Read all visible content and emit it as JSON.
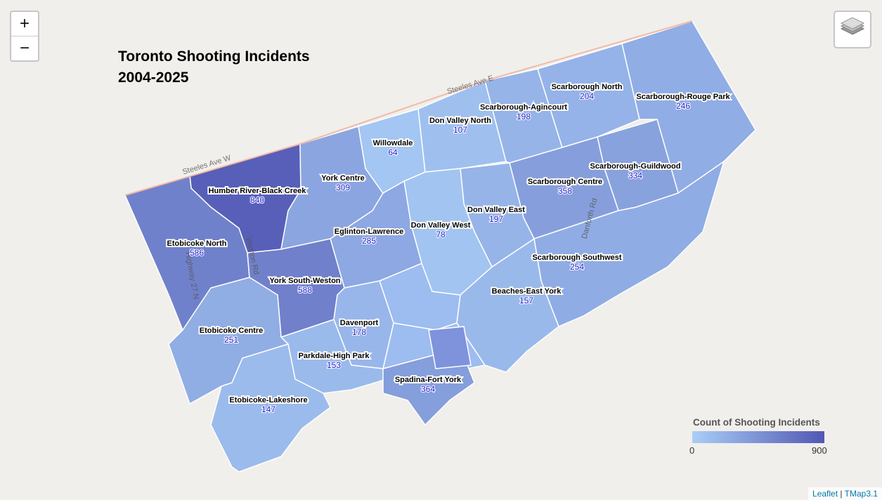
{
  "title": "Toronto Shooting Incidents",
  "subtitle": "2004-2025",
  "zoom_controls": [
    "+",
    "−"
  ],
  "roads": [
    "Steeles Ave W",
    "Steeles Ave E",
    "Weston Rd",
    "Highway 27 N",
    "Danforth Rd"
  ],
  "districts": [
    {
      "name": "Humber River-Black Creek",
      "count": 840
    },
    {
      "name": "Etobicoke North",
      "count": 586
    },
    {
      "name": "York Centre",
      "count": 309
    },
    {
      "name": "Willowdale",
      "count": 64
    },
    {
      "name": "Don Valley North",
      "count": 107
    },
    {
      "name": "Scarborough-Agincourt",
      "count": 198
    },
    {
      "name": "Scarborough North",
      "count": 204
    },
    {
      "name": "Scarborough-Rouge Park",
      "count": 246
    },
    {
      "name": "Scarborough-Guildwood",
      "count": 334
    },
    {
      "name": "Scarborough Centre",
      "count": 358
    },
    {
      "name": "Scarborough Southwest",
      "count": 254
    },
    {
      "name": "Beaches-East York",
      "count": 157
    },
    {
      "name": "Don Valley East",
      "count": 197
    },
    {
      "name": "Don Valley West",
      "count": 78
    },
    {
      "name": "Eglinton-Lawrence",
      "count": 285
    },
    {
      "name": "York South-Weston",
      "count": 588
    },
    {
      "name": "Etobicoke Centre",
      "count": 251
    },
    {
      "name": "Davenport",
      "count": 178
    },
    {
      "name": "Parkdale-High Park",
      "count": 153
    },
    {
      "name": "Spadina-Fort York",
      "count": 364
    },
    {
      "name": "Etobicoke-Lakeshore",
      "count": 147
    }
  ],
  "legend": {
    "title": "Count of Shooting Incidents",
    "min": 0,
    "max": 900,
    "colors": [
      "#a9cef7",
      "#5157b4"
    ]
  },
  "attribution": {
    "links": [
      "Leaflet",
      "TMap3.1"
    ],
    "separator": "|"
  }
}
